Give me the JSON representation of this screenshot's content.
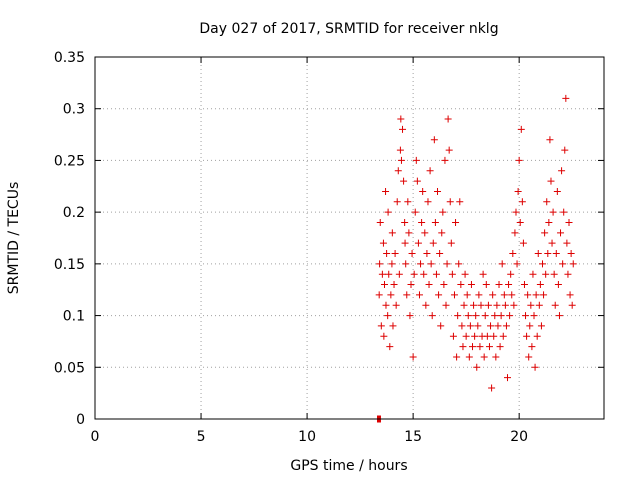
{
  "chart_data": {
    "type": "scatter",
    "title": "Day 027 of 2017, SRMTID for receiver nklg",
    "xlabel": "GPS time / hours",
    "ylabel": "SRMTID / TECUs",
    "xlim": [
      0,
      24
    ],
    "ylim": [
      0,
      0.35
    ],
    "x_ticks": [
      "0",
      "5",
      "10",
      "15",
      "20"
    ],
    "y_ticks": [
      "0",
      "0.05",
      "0.1",
      "0.15",
      "0.2",
      "0.25",
      "0.3",
      "0.35"
    ],
    "grid": true,
    "marker": "+",
    "color": "#dd0000",
    "series": [
      {
        "points": [
          [
            13.32,
            0.0
          ],
          [
            13.34,
            0.0
          ],
          [
            13.36,
            0.0
          ],
          [
            13.38,
            0.0
          ],
          [
            13.4,
            0.0
          ],
          [
            13.42,
            0.0
          ],
          [
            13.44,
            0.0
          ],
          [
            13.46,
            0.0
          ],
          [
            13.4,
            0.12
          ],
          [
            13.42,
            0.15
          ],
          [
            13.45,
            0.19
          ],
          [
            13.5,
            0.09
          ],
          [
            13.55,
            0.14
          ],
          [
            13.6,
            0.17
          ],
          [
            13.62,
            0.08
          ],
          [
            13.65,
            0.13
          ],
          [
            13.7,
            0.22
          ],
          [
            13.72,
            0.11
          ],
          [
            13.75,
            0.16
          ],
          [
            13.8,
            0.1
          ],
          [
            13.82,
            0.2
          ],
          [
            13.85,
            0.14
          ],
          [
            13.9,
            0.07
          ],
          [
            13.95,
            0.12
          ],
          [
            14.0,
            0.15
          ],
          [
            14.02,
            0.18
          ],
          [
            14.05,
            0.09
          ],
          [
            14.1,
            0.13
          ],
          [
            14.15,
            0.16
          ],
          [
            14.2,
            0.11
          ],
          [
            14.25,
            0.21
          ],
          [
            14.3,
            0.24
          ],
          [
            14.35,
            0.14
          ],
          [
            14.4,
            0.26
          ],
          [
            14.42,
            0.29
          ],
          [
            14.45,
            0.25
          ],
          [
            14.5,
            0.28
          ],
          [
            14.55,
            0.23
          ],
          [
            14.6,
            0.19
          ],
          [
            14.62,
            0.17
          ],
          [
            14.65,
            0.15
          ],
          [
            14.7,
            0.12
          ],
          [
            14.75,
            0.21
          ],
          [
            14.8,
            0.18
          ],
          [
            14.85,
            0.1
          ],
          [
            14.9,
            0.13
          ],
          [
            14.95,
            0.16
          ],
          [
            15.0,
            0.06
          ],
          [
            15.05,
            0.14
          ],
          [
            15.1,
            0.2
          ],
          [
            15.15,
            0.25
          ],
          [
            15.2,
            0.23
          ],
          [
            15.25,
            0.17
          ],
          [
            15.3,
            0.12
          ],
          [
            15.35,
            0.15
          ],
          [
            15.4,
            0.19
          ],
          [
            15.45,
            0.22
          ],
          [
            15.5,
            0.14
          ],
          [
            15.55,
            0.18
          ],
          [
            15.6,
            0.11
          ],
          [
            15.65,
            0.16
          ],
          [
            15.7,
            0.21
          ],
          [
            15.75,
            0.13
          ],
          [
            15.8,
            0.24
          ],
          [
            15.85,
            0.15
          ],
          [
            15.9,
            0.1
          ],
          [
            15.95,
            0.17
          ],
          [
            16.0,
            0.27
          ],
          [
            16.05,
            0.19
          ],
          [
            16.1,
            0.14
          ],
          [
            16.15,
            0.22
          ],
          [
            16.2,
            0.12
          ],
          [
            16.25,
            0.16
          ],
          [
            16.3,
            0.09
          ],
          [
            16.35,
            0.18
          ],
          [
            16.4,
            0.2
          ],
          [
            16.45,
            0.13
          ],
          [
            16.5,
            0.25
          ],
          [
            16.55,
            0.11
          ],
          [
            16.6,
            0.15
          ],
          [
            16.65,
            0.29
          ],
          [
            16.7,
            0.26
          ],
          [
            16.75,
            0.21
          ],
          [
            16.8,
            0.17
          ],
          [
            16.85,
            0.14
          ],
          [
            16.9,
            0.08
          ],
          [
            16.95,
            0.12
          ],
          [
            17.0,
            0.19
          ],
          [
            17.05,
            0.06
          ],
          [
            17.1,
            0.1
          ],
          [
            17.15,
            0.15
          ],
          [
            17.2,
            0.21
          ],
          [
            17.25,
            0.13
          ],
          [
            17.3,
            0.09
          ],
          [
            17.35,
            0.07
          ],
          [
            17.4,
            0.11
          ],
          [
            17.45,
            0.14
          ],
          [
            17.5,
            0.08
          ],
          [
            17.55,
            0.12
          ],
          [
            17.6,
            0.1
          ],
          [
            17.65,
            0.06
          ],
          [
            17.7,
            0.09
          ],
          [
            17.75,
            0.13
          ],
          [
            17.8,
            0.07
          ],
          [
            17.85,
            0.11
          ],
          [
            17.9,
            0.08
          ],
          [
            17.95,
            0.1
          ],
          [
            18.0,
            0.05
          ],
          [
            18.05,
            0.09
          ],
          [
            18.1,
            0.12
          ],
          [
            18.15,
            0.07
          ],
          [
            18.2,
            0.11
          ],
          [
            18.25,
            0.08
          ],
          [
            18.3,
            0.14
          ],
          [
            18.35,
            0.06
          ],
          [
            18.4,
            0.1
          ],
          [
            18.45,
            0.13
          ],
          [
            18.5,
            0.08
          ],
          [
            18.55,
            0.11
          ],
          [
            18.6,
            0.07
          ],
          [
            18.65,
            0.09
          ],
          [
            18.7,
            0.03
          ],
          [
            18.75,
            0.12
          ],
          [
            18.8,
            0.08
          ],
          [
            18.85,
            0.1
          ],
          [
            18.9,
            0.06
          ],
          [
            18.95,
            0.11
          ],
          [
            19.0,
            0.09
          ],
          [
            19.05,
            0.13
          ],
          [
            19.1,
            0.07
          ],
          [
            19.15,
            0.1
          ],
          [
            19.2,
            0.15
          ],
          [
            19.25,
            0.08
          ],
          [
            19.3,
            0.12
          ],
          [
            19.35,
            0.11
          ],
          [
            19.4,
            0.09
          ],
          [
            19.45,
            0.04
          ],
          [
            19.5,
            0.13
          ],
          [
            19.55,
            0.1
          ],
          [
            19.6,
            0.14
          ],
          [
            19.65,
            0.12
          ],
          [
            19.7,
            0.16
          ],
          [
            19.75,
            0.11
          ],
          [
            19.8,
            0.18
          ],
          [
            19.85,
            0.2
          ],
          [
            19.9,
            0.15
          ],
          [
            19.95,
            0.22
          ],
          [
            20.0,
            0.25
          ],
          [
            20.05,
            0.19
          ],
          [
            20.1,
            0.28
          ],
          [
            20.15,
            0.21
          ],
          [
            20.2,
            0.17
          ],
          [
            20.25,
            0.13
          ],
          [
            20.3,
            0.1
          ],
          [
            20.35,
            0.08
          ],
          [
            20.4,
            0.12
          ],
          [
            20.45,
            0.06
          ],
          [
            20.5,
            0.09
          ],
          [
            20.55,
            0.11
          ],
          [
            20.6,
            0.07
          ],
          [
            20.65,
            0.14
          ],
          [
            20.7,
            0.1
          ],
          [
            20.75,
            0.05
          ],
          [
            20.8,
            0.12
          ],
          [
            20.85,
            0.08
          ],
          [
            20.9,
            0.16
          ],
          [
            20.95,
            0.11
          ],
          [
            21.0,
            0.13
          ],
          [
            21.05,
            0.09
          ],
          [
            21.1,
            0.15
          ],
          [
            21.15,
            0.12
          ],
          [
            21.2,
            0.18
          ],
          [
            21.25,
            0.14
          ],
          [
            21.3,
            0.21
          ],
          [
            21.35,
            0.16
          ],
          [
            21.4,
            0.19
          ],
          [
            21.45,
            0.27
          ],
          [
            21.5,
            0.23
          ],
          [
            21.55,
            0.17
          ],
          [
            21.6,
            0.2
          ],
          [
            21.65,
            0.14
          ],
          [
            21.7,
            0.11
          ],
          [
            21.75,
            0.16
          ],
          [
            21.8,
            0.22
          ],
          [
            21.85,
            0.13
          ],
          [
            21.9,
            0.1
          ],
          [
            21.95,
            0.18
          ],
          [
            22.0,
            0.24
          ],
          [
            22.05,
            0.15
          ],
          [
            22.1,
            0.2
          ],
          [
            22.15,
            0.26
          ],
          [
            22.2,
            0.31
          ],
          [
            22.25,
            0.17
          ],
          [
            22.3,
            0.14
          ],
          [
            22.35,
            0.19
          ],
          [
            22.4,
            0.12
          ],
          [
            22.45,
            0.16
          ],
          [
            22.5,
            0.11
          ],
          [
            22.55,
            0.15
          ]
        ]
      }
    ]
  }
}
